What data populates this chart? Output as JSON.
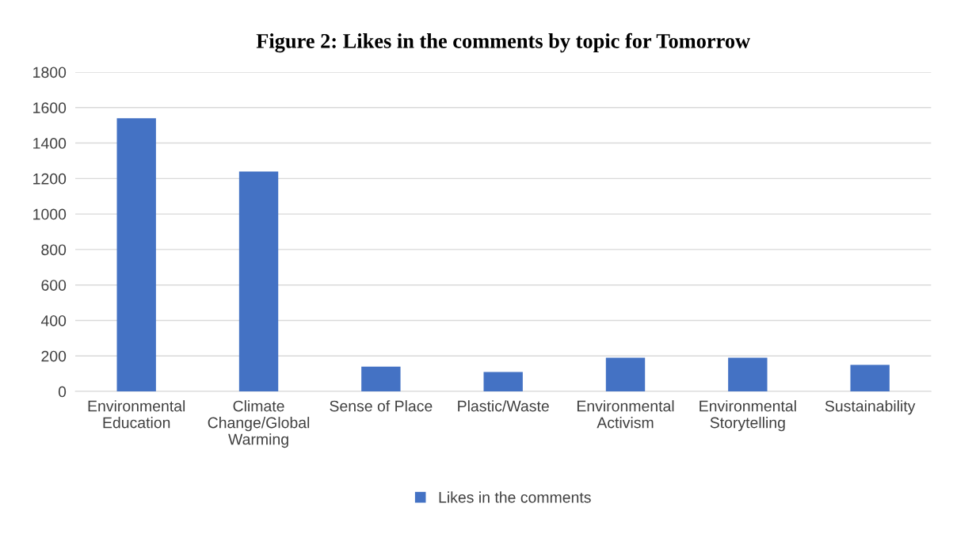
{
  "chart_data": {
    "type": "bar",
    "title": "Figure 2: Likes in the comments by topic for Tomorrow",
    "categories": [
      "Environmental Education",
      "Climate Change/Global Warming",
      "Sense of Place",
      "Plastic/Waste",
      "Environmental Activism",
      "Environmental Storytelling",
      "Sustainability"
    ],
    "series": [
      {
        "name": "Likes in the comments",
        "color": "#4472c4",
        "values": [
          1540,
          1240,
          140,
          110,
          190,
          190,
          150
        ]
      }
    ],
    "ylim": [
      0,
      1800
    ],
    "yticks": [
      0,
      200,
      400,
      600,
      800,
      1000,
      1200,
      1400,
      1600,
      1800
    ],
    "grid": "y",
    "legend": "bottom"
  }
}
